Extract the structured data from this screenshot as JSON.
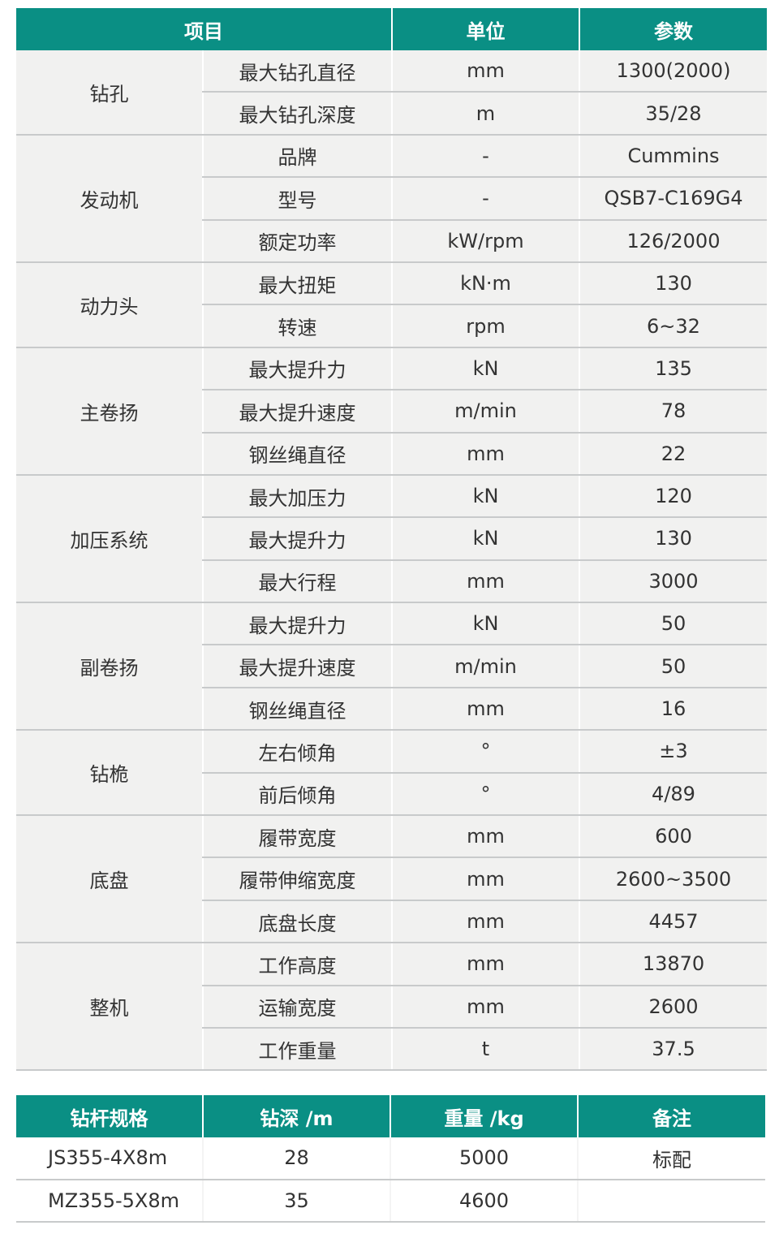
{
  "colors": {
    "header": "#0a8f84",
    "row_bg": "#f1f1f0",
    "divider": "#c8cacb"
  },
  "specs": {
    "headers": [
      "项目",
      "单位",
      "参数"
    ],
    "groups": [
      {
        "name": "钻孔",
        "rows": [
          [
            "最大钻孔直径",
            "mm",
            "1300(2000)"
          ],
          [
            "最大钻孔深度",
            "m",
            "35/28"
          ]
        ]
      },
      {
        "name": "发动机",
        "rows": [
          [
            "品牌",
            "-",
            "Cummins"
          ],
          [
            "型号",
            "-",
            "QSB7-C169G4"
          ],
          [
            "额定功率",
            "kW/rpm",
            "126/2000"
          ]
        ]
      },
      {
        "name": "动力头",
        "rows": [
          [
            "最大扭矩",
            "kN·m",
            "130"
          ],
          [
            "转速",
            "rpm",
            "6~32"
          ]
        ]
      },
      {
        "name": "主卷扬",
        "rows": [
          [
            "最大提升力",
            "kN",
            "135"
          ],
          [
            "最大提升速度",
            "m/min",
            "78"
          ],
          [
            "钢丝绳直径",
            "mm",
            "22"
          ]
        ]
      },
      {
        "name": "加压系统",
        "rows": [
          [
            "最大加压力",
            "kN",
            "120"
          ],
          [
            "最大提升力",
            "kN",
            "130"
          ],
          [
            "最大行程",
            "mm",
            "3000"
          ]
        ]
      },
      {
        "name": "副卷扬",
        "rows": [
          [
            "最大提升力",
            "kN",
            "50"
          ],
          [
            "最大提升速度",
            "m/min",
            "50"
          ],
          [
            "钢丝绳直径",
            "mm",
            "16"
          ]
        ]
      },
      {
        "name": "钻桅",
        "rows": [
          [
            "左右倾角",
            "°",
            "±3"
          ],
          [
            "前后倾角",
            "°",
            "4/89"
          ]
        ]
      },
      {
        "name": "底盘",
        "rows": [
          [
            "履带宽度",
            "mm",
            "600"
          ],
          [
            "履带伸缩宽度",
            "mm",
            "2600~3500"
          ],
          [
            "底盘长度",
            "mm",
            "4457"
          ]
        ]
      },
      {
        "name": "整机",
        "rows": [
          [
            "工作高度",
            "mm",
            "13870"
          ],
          [
            "运输宽度",
            "mm",
            "2600"
          ],
          [
            "工作重量",
            "t",
            "37.5"
          ]
        ]
      }
    ]
  },
  "rods": {
    "headers": [
      "钻杆规格",
      "钻深 /m",
      "重量 /kg",
      "备注"
    ],
    "rows": [
      [
        "JS355-4X8m",
        "28",
        "5000",
        "标配"
      ],
      [
        "MZ355-5X8m",
        "35",
        "4600",
        ""
      ]
    ]
  }
}
